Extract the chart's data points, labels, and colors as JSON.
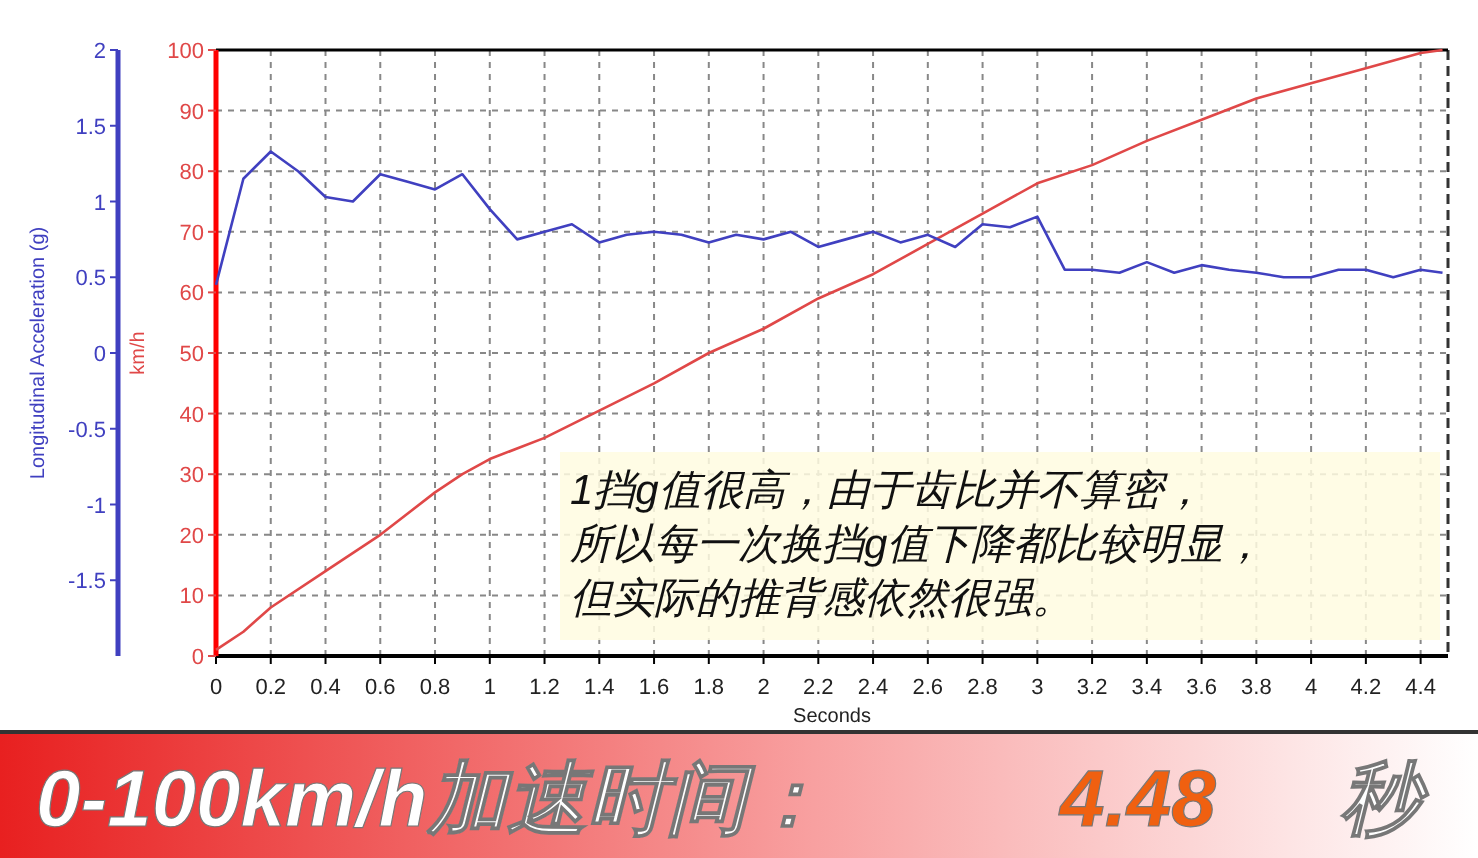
{
  "chart_data": {
    "type": "line",
    "xlabel": "Seconds",
    "ylabel": "km/h",
    "y2label": "Longitudinal Acceleration (g)",
    "xlim": [
      0,
      4.5
    ],
    "xticks": [
      0,
      0.2,
      0.4,
      0.6,
      0.8,
      1,
      1.2,
      1.4,
      1.6,
      1.8,
      2,
      2.2,
      2.4,
      2.6,
      2.8,
      3,
      3.2,
      3.4,
      3.6,
      3.8,
      4,
      4.2,
      4.4
    ],
    "ylim": [
      0,
      100
    ],
    "yticks": [
      0,
      10,
      20,
      30,
      40,
      50,
      60,
      70,
      80,
      90,
      100
    ],
    "y2lim": [
      -2,
      2
    ],
    "y2ticks": [
      2,
      1.5,
      1,
      0.5,
      0,
      -0.5,
      -1,
      -1.5
    ],
    "grid": true,
    "series": [
      {
        "color": "#e04848",
        "x": [
          0,
          0.1,
          0.2,
          0.4,
          0.6,
          0.8,
          0.9,
          1.0,
          1.2,
          1.4,
          1.6,
          1.8,
          2.0,
          2.2,
          2.4,
          2.6,
          2.8,
          3.0,
          3.2,
          3.4,
          3.6,
          3.8,
          4.0,
          4.2,
          4.4,
          4.48
        ],
        "values": [
          1,
          4,
          8,
          14,
          20,
          27,
          30,
          32.5,
          36,
          40.5,
          45,
          50,
          54,
          59,
          63,
          68,
          73,
          78,
          81,
          85,
          88.5,
          92,
          94.5,
          97,
          99.5,
          100
        ]
      },
      {
        "color": "#4040c0",
        "axis": "y2",
        "x": [
          0,
          0.1,
          0.2,
          0.3,
          0.4,
          0.5,
          0.6,
          0.7,
          0.8,
          0.9,
          1.0,
          1.1,
          1.2,
          1.3,
          1.4,
          1.5,
          1.6,
          1.7,
          1.8,
          1.9,
          2.0,
          2.1,
          2.2,
          2.3,
          2.4,
          2.5,
          2.6,
          2.7,
          2.8,
          2.9,
          3.0,
          3.1,
          3.2,
          3.3,
          3.4,
          3.5,
          3.6,
          3.7,
          3.8,
          3.9,
          4.0,
          4.1,
          4.2,
          4.3,
          4.4,
          4.48
        ],
        "values": [
          0.45,
          1.15,
          1.33,
          1.2,
          1.03,
          1.0,
          1.18,
          1.13,
          1.08,
          1.18,
          0.95,
          0.75,
          0.8,
          0.85,
          0.73,
          0.78,
          0.8,
          0.78,
          0.73,
          0.78,
          0.75,
          0.8,
          0.7,
          0.75,
          0.8,
          0.73,
          0.78,
          0.7,
          0.85,
          0.83,
          0.9,
          0.55,
          0.55,
          0.53,
          0.6,
          0.53,
          0.58,
          0.55,
          0.53,
          0.5,
          0.5,
          0.55,
          0.55,
          0.5,
          0.55,
          0.53
        ]
      }
    ],
    "annotations": [
      "1挡g值很高，由于齿比并不算密，",
      "所以每一次换挡g值下降都比较明显，",
      "但实际的推背感依然很强。",
      "0-100km/h加速时间：",
      "4.48",
      "秒"
    ]
  }
}
